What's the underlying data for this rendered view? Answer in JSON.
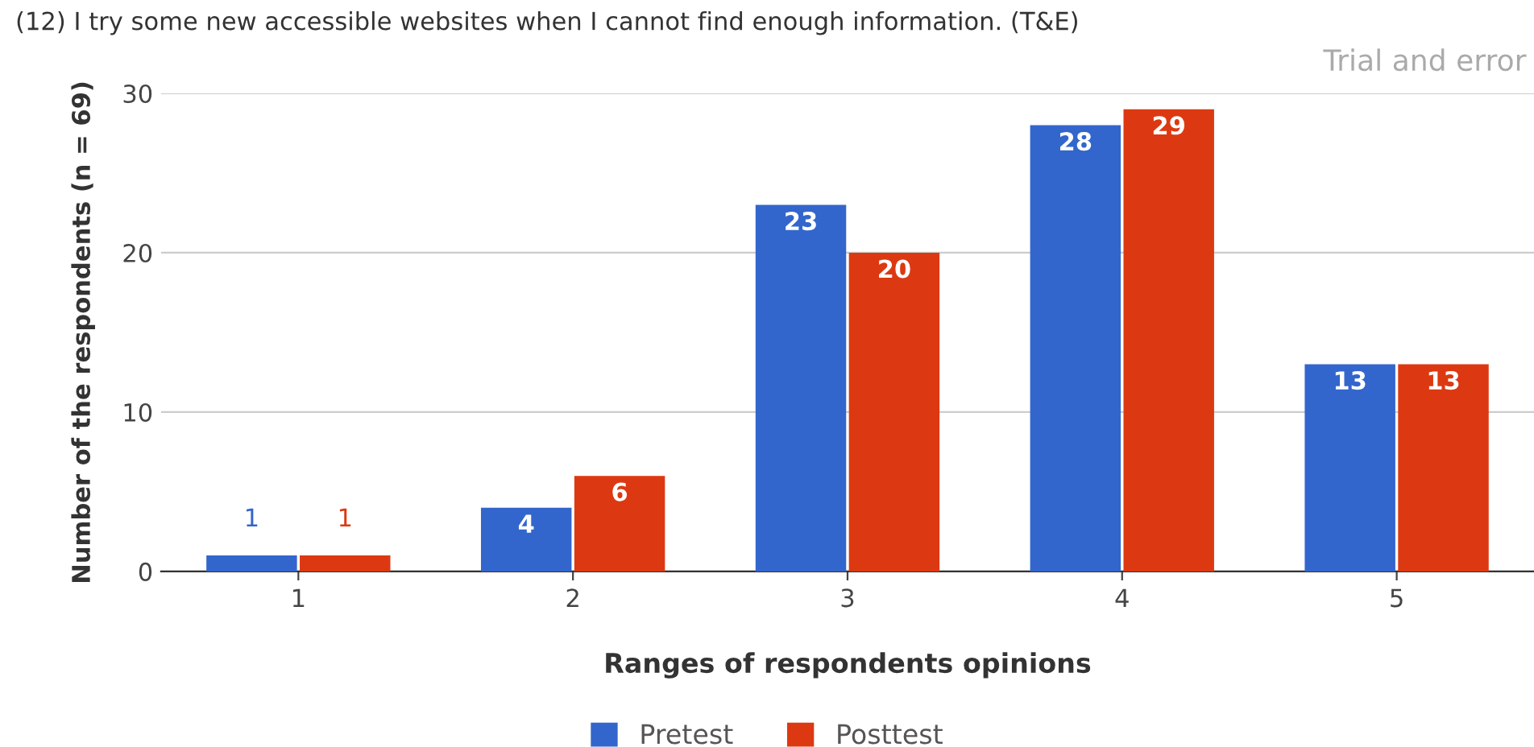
{
  "chart_data": {
    "type": "bar",
    "title": "(12) I try some new accessible websites when I cannot find enough information. (T&E)",
    "subtitle": "Trial and error",
    "xlabel": "Ranges of respondents opinions",
    "ylabel": "Number of the respondents (n = 69)",
    "categories": [
      "1",
      "2",
      "3",
      "4",
      "5"
    ],
    "series": [
      {
        "name": "Pretest",
        "color": "#3366cc",
        "values": [
          1,
          4,
          23,
          28,
          13
        ]
      },
      {
        "name": "Posttest",
        "color": "#dc3912",
        "values": [
          1,
          6,
          20,
          29,
          13
        ]
      }
    ],
    "ylim": [
      0,
      30
    ],
    "yticks": [
      0,
      10,
      20,
      30
    ],
    "grid": "y",
    "legend": "bottom",
    "data_labels": true
  }
}
